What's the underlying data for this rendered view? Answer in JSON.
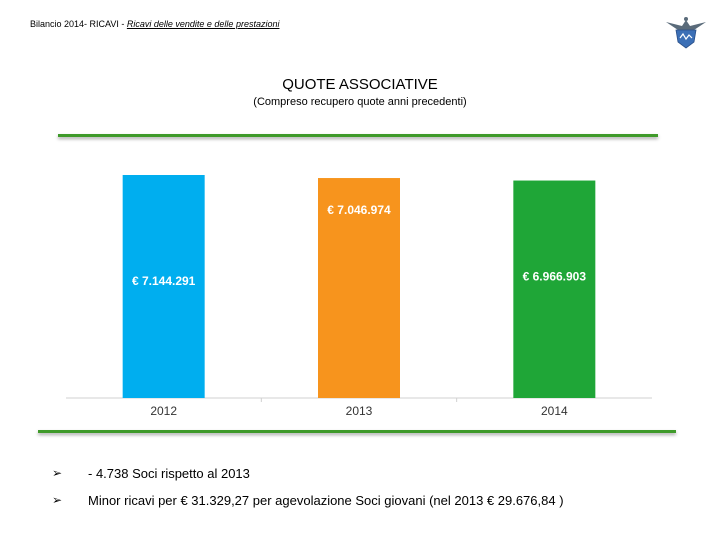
{
  "header": {
    "prefix": "Bilancio 2014- RICAVI - ",
    "link": "Ricavi  delle vendite e delle prestazioni"
  },
  "logo": {
    "icon": "eagle-shield-logo-icon",
    "color": "#3b6fb6"
  },
  "title": "QUOTE ASSOCIATIVE",
  "subtitle": "(Compreso recupero quote anni precedenti)",
  "colors": {
    "rule": "#3f9a2a",
    "bar_2012": "#00aeef",
    "bar_2013": "#f7941d",
    "bar_2014": "#1fa637"
  },
  "chart_data": {
    "type": "bar",
    "categories": [
      "2012",
      "2013",
      "2014"
    ],
    "values": [
      7144291,
      7046974,
      6966903
    ],
    "data_labels": [
      "€ 7.144.291",
      "€ 7.046.974",
      "€ 6.966.903"
    ],
    "colors": [
      "#00aeef",
      "#f7941d",
      "#1fa637"
    ],
    "title": "QUOTE ASSOCIATIVE",
    "xlabel": "",
    "ylabel": "",
    "grid": false,
    "legend": "none"
  },
  "bullets": [
    {
      "icon": "arrow-bullet-icon",
      "glyph": "➢",
      "text": "- 4.738 Soci rispetto al 2013"
    },
    {
      "icon": "arrow-bullet-icon",
      "glyph": "➢",
      "text": "Minor ricavi per € 31.329,27 per agevolazione Soci giovani (nel 2013  € 29.676,84 )"
    }
  ]
}
